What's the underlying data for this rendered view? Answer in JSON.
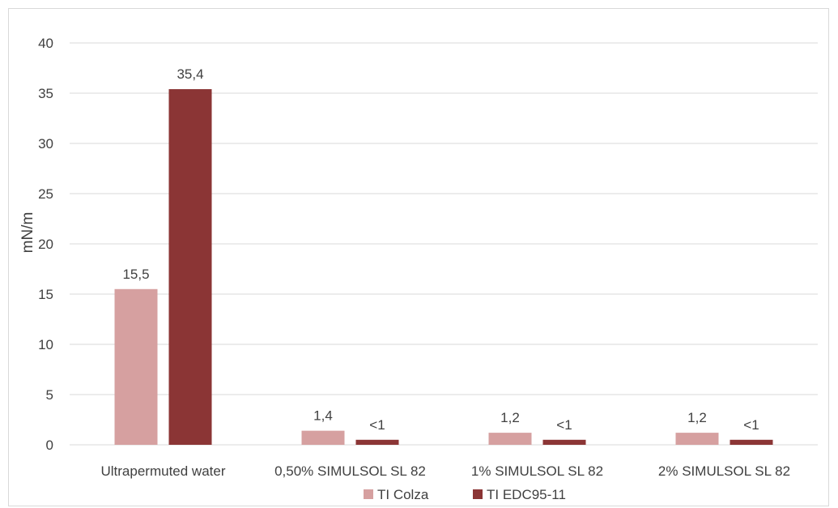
{
  "chart_data": {
    "type": "bar",
    "title": "",
    "xlabel": "",
    "ylabel": "mN/m",
    "ylim": [
      0,
      40
    ],
    "yticks": [
      0,
      5,
      10,
      15,
      20,
      25,
      30,
      35,
      40
    ],
    "grid": true,
    "legend_position": "bottom",
    "categories": [
      "Ultrapermuted water",
      "0,50% SIMULSOL SL 82",
      "1% SIMULSOL SL 82",
      "2% SIMULSOL SL 82"
    ],
    "series": [
      {
        "name": "TI Colza",
        "color": "#d6a0a0",
        "values": [
          15.5,
          1.4,
          1.2,
          1.2
        ],
        "labels": [
          "15,5",
          "1,4",
          "1,2",
          "1,2"
        ]
      },
      {
        "name": "TI EDC95-11",
        "color": "#8b3535",
        "values": [
          35.4,
          0.5,
          0.5,
          0.5
        ],
        "labels": [
          "35,4",
          "<1",
          "<1",
          "<1"
        ]
      }
    ]
  }
}
